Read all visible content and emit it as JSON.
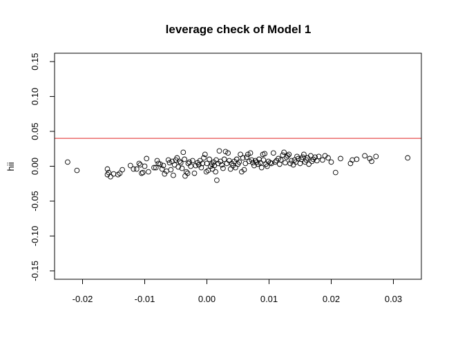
{
  "chart_data": {
    "type": "scatter",
    "title": "leverage check of Model 1",
    "xlabel": "",
    "ylabel": "hii",
    "xlim": [
      -0.0245,
      0.0345
    ],
    "ylim": [
      -0.162,
      0.162
    ],
    "xticks": [
      -0.02,
      -0.01,
      0.0,
      0.01,
      0.02,
      0.03
    ],
    "xtick_labels": [
      "-0.02",
      "-0.01",
      "0.00",
      "0.01",
      "0.02",
      "0.03"
    ],
    "yticks": [
      -0.15,
      -0.1,
      -0.05,
      0.0,
      0.05,
      0.1,
      0.15
    ],
    "ytick_labels": [
      "-0.15",
      "-0.10",
      "-0.05",
      "0.00",
      "0.05",
      "0.10",
      "0.15"
    ],
    "grid": false,
    "reference_line": {
      "y": 0.04,
      "color": "#e02020"
    },
    "point_color": "#000000",
    "points": [
      [
        -0.0224,
        0.006
      ],
      [
        -0.0209,
        -0.006
      ],
      [
        -0.016,
        -0.004
      ],
      [
        -0.016,
        -0.012
      ],
      [
        -0.0158,
        -0.009
      ],
      [
        -0.0155,
        -0.015
      ],
      [
        -0.015,
        -0.011
      ],
      [
        -0.0143,
        -0.012
      ],
      [
        -0.014,
        -0.01
      ],
      [
        -0.0136,
        -0.005
      ],
      [
        -0.0123,
        0.001
      ],
      [
        -0.0118,
        -0.004
      ],
      [
        -0.0113,
        -0.004
      ],
      [
        -0.0109,
        0.004
      ],
      [
        -0.0107,
        0.002
      ],
      [
        -0.0105,
        -0.01
      ],
      [
        -0.0103,
        -0.009
      ],
      [
        -0.01,
        0.0
      ],
      [
        -0.0097,
        0.011
      ],
      [
        -0.0094,
        -0.008
      ],
      [
        -0.0085,
        -0.002
      ],
      [
        -0.0082,
        -0.002
      ],
      [
        -0.008,
        0.008
      ],
      [
        -0.0078,
        0.004
      ],
      [
        -0.0075,
        0.003
      ],
      [
        -0.0072,
        -0.004
      ],
      [
        -0.007,
        0.001
      ],
      [
        -0.0068,
        -0.011
      ],
      [
        -0.0065,
        -0.007
      ],
      [
        -0.0062,
        0.009
      ],
      [
        -0.006,
        0.005
      ],
      [
        -0.0058,
        -0.005
      ],
      [
        -0.0056,
        0.007
      ],
      [
        -0.0054,
        -0.013
      ],
      [
        -0.0052,
        0.002
      ],
      [
        -0.005,
        0.009
      ],
      [
        -0.0048,
        0.012
      ],
      [
        -0.0046,
        -0.001
      ],
      [
        -0.0044,
        0.007
      ],
      [
        -0.0042,
        0.005
      ],
      [
        -0.004,
        -0.003
      ],
      [
        -0.0038,
        0.02
      ],
      [
        -0.0036,
        0.01
      ],
      [
        -0.0035,
        -0.014
      ],
      [
        -0.0033,
        -0.008
      ],
      [
        -0.0031,
        -0.01
      ],
      [
        -0.003,
        0.004
      ],
      [
        -0.0028,
        0.006
      ],
      [
        -0.0026,
        0.0
      ],
      [
        -0.0023,
        0.008
      ],
      [
        -0.002,
        -0.01
      ],
      [
        -0.0018,
        0.001
      ],
      [
        -0.0015,
        0.005
      ],
      [
        -0.0013,
        0.002
      ],
      [
        -0.0011,
        0.008
      ],
      [
        -0.0009,
        -0.002
      ],
      [
        -0.0007,
        0.004
      ],
      [
        -0.0005,
        0.012
      ],
      [
        -0.0003,
        0.017
      ],
      [
        -0.0001,
        -0.008
      ],
      [
        0.0,
        0.004
      ],
      [
        0.0002,
        -0.006
      ],
      [
        0.0004,
        0.01
      ],
      [
        0.0006,
        0.0
      ],
      [
        0.0008,
        0.003
      ],
      [
        0.0009,
        -0.004
      ],
      [
        0.0011,
        0.006
      ],
      [
        0.0012,
        0.001
      ],
      [
        0.0014,
        -0.008
      ],
      [
        0.0015,
        0.009
      ],
      [
        0.0016,
        -0.02
      ],
      [
        0.0018,
        0.004
      ],
      [
        0.002,
        0.022
      ],
      [
        0.0022,
        0.007
      ],
      [
        0.0024,
        0.002
      ],
      [
        0.0026,
        -0.003
      ],
      [
        0.0028,
        0.01
      ],
      [
        0.003,
        0.021
      ],
      [
        0.0032,
        0.004
      ],
      [
        0.0034,
        0.019
      ],
      [
        0.0036,
        0.008
      ],
      [
        0.0038,
        -0.004
      ],
      [
        0.004,
        0.004
      ],
      [
        0.0042,
        0.001
      ],
      [
        0.0044,
        0.007
      ],
      [
        0.0046,
        -0.002
      ],
      [
        0.0048,
        0.01
      ],
      [
        0.005,
        0.003
      ],
      [
        0.0052,
        0.006
      ],
      [
        0.0054,
        0.017
      ],
      [
        0.0056,
        -0.008
      ],
      [
        0.0058,
        0.012
      ],
      [
        0.006,
        -0.005
      ],
      [
        0.0062,
        0.004
      ],
      [
        0.0064,
        0.013
      ],
      [
        0.0066,
        0.017
      ],
      [
        0.0068,
        0.007
      ],
      [
        0.007,
        0.019
      ],
      [
        0.0072,
        0.009
      ],
      [
        0.0074,
        0.005
      ],
      [
        0.0076,
        0.001
      ],
      [
        0.0078,
        0.008
      ],
      [
        0.008,
        0.006
      ],
      [
        0.0082,
        0.003
      ],
      [
        0.0084,
        0.01
      ],
      [
        0.0086,
        0.005
      ],
      [
        0.0088,
        -0.002
      ],
      [
        0.009,
        0.017
      ],
      [
        0.0091,
        0.009
      ],
      [
        0.0093,
        0.018
      ],
      [
        0.0095,
        0.003
      ],
      [
        0.0097,
        0.0
      ],
      [
        0.0099,
        0.007
      ],
      [
        0.0102,
        0.005
      ],
      [
        0.0104,
        0.004
      ],
      [
        0.0107,
        0.019
      ],
      [
        0.011,
        0.006
      ],
      [
        0.0112,
        0.008
      ],
      [
        0.0115,
        0.011
      ],
      [
        0.0117,
        0.003
      ],
      [
        0.0119,
        0.009
      ],
      [
        0.0122,
        0.016
      ],
      [
        0.0124,
        0.02
      ],
      [
        0.0126,
        0.005
      ],
      [
        0.0128,
        0.013
      ],
      [
        0.013,
        0.015
      ],
      [
        0.0132,
        0.017
      ],
      [
        0.0134,
        0.004
      ],
      [
        0.0136,
        0.008
      ],
      [
        0.0139,
        0.002
      ],
      [
        0.0141,
        0.009
      ],
      [
        0.0143,
        0.006
      ],
      [
        0.0145,
        0.014
      ],
      [
        0.0147,
        0.011
      ],
      [
        0.015,
        0.004
      ],
      [
        0.0152,
        0.01
      ],
      [
        0.0154,
        0.013
      ],
      [
        0.0156,
        0.017
      ],
      [
        0.0158,
        0.006
      ],
      [
        0.016,
        0.009
      ],
      [
        0.0162,
        0.012
      ],
      [
        0.0164,
        0.003
      ],
      [
        0.0167,
        0.015
      ],
      [
        0.0169,
        0.007
      ],
      [
        0.0171,
        0.01
      ],
      [
        0.0174,
        0.013
      ],
      [
        0.0177,
        0.008
      ],
      [
        0.018,
        0.014
      ],
      [
        0.0186,
        0.009
      ],
      [
        0.019,
        0.015
      ],
      [
        0.0195,
        0.012
      ],
      [
        0.02,
        0.006
      ],
      [
        0.0207,
        -0.009
      ],
      [
        0.0215,
        0.011
      ],
      [
        0.0231,
        0.004
      ],
      [
        0.0234,
        0.009
      ],
      [
        0.0241,
        0.01
      ],
      [
        0.0254,
        0.015
      ],
      [
        0.0262,
        0.011
      ],
      [
        0.0265,
        0.007
      ],
      [
        0.0272,
        0.014
      ],
      [
        0.0323,
        0.012
      ]
    ]
  }
}
